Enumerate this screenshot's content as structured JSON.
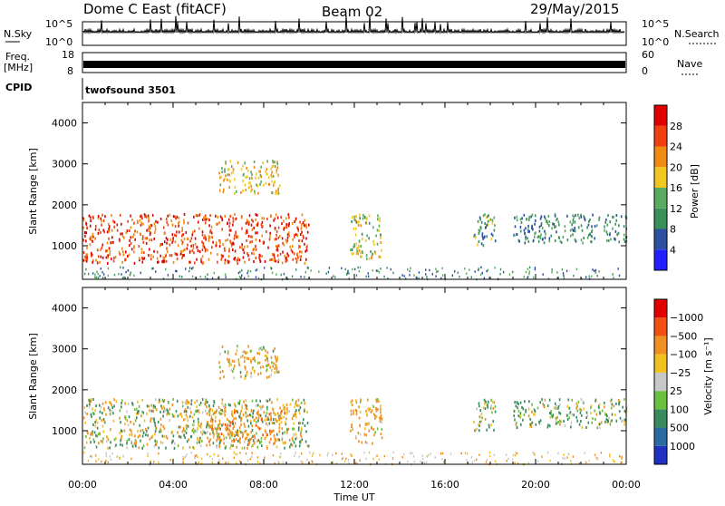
{
  "header": {
    "station": "Dome C East (fitACF)",
    "beam": "Beam 02",
    "date": "29/May/2015"
  },
  "top_panels": {
    "nsky_label": "N.Sky",
    "nsky_ticks": [
      "10^5",
      "10^0"
    ],
    "nsearch_label": "N.Search",
    "nsearch_ticks": [
      "10^5",
      "10^0"
    ],
    "freq_label": "Freq.",
    "freq_unit": "[MHz]",
    "freq_ticks": [
      "18",
      "8"
    ],
    "nave_label": "Nave",
    "nave_ticks": [
      "60",
      "0"
    ],
    "cpid_label": "CPID",
    "cpid_value": "twofsound 3501"
  },
  "chart_data": [
    {
      "type": "heatmap",
      "panel": "power",
      "ylabel": "Slant Range [km]",
      "ylim": [
        180,
        4500
      ],
      "yticks": [
        "4000",
        "3000",
        "2000",
        "1000"
      ],
      "colorbar_label": "Power [dB]",
      "colorbar_ticks": [
        "28",
        "24",
        "20",
        "16",
        "12",
        "8",
        "4"
      ],
      "colors": [
        "#2020ff",
        "#2c4fa0",
        "#3a8f5a",
        "#5aaa60",
        "#f0c820",
        "#f08a10",
        "#f04010",
        "#e00000"
      ],
      "grid": false,
      "echo_regions": [
        {
          "t_start": 0.0,
          "t_end": 10.0,
          "range_min": 600,
          "range_max": 1800,
          "typical_power_db": 26
        },
        {
          "t_start": 6.0,
          "t_end": 8.7,
          "range_min": 2300,
          "range_max": 3100,
          "typical_power_db": 18
        },
        {
          "t_start": 11.8,
          "t_end": 13.2,
          "range_min": 700,
          "range_max": 1800,
          "typical_power_db": 16
        },
        {
          "t_start": 17.2,
          "t_end": 18.2,
          "range_min": 1000,
          "range_max": 1800,
          "typical_power_db": 12
        },
        {
          "t_start": 19.0,
          "t_end": 24.0,
          "range_min": 1100,
          "range_max": 1800,
          "typical_power_db": 10
        }
      ]
    },
    {
      "type": "heatmap",
      "panel": "velocity",
      "ylabel": "Slant Range [km]",
      "xlabel": "Time UT",
      "ylim": [
        180,
        4500
      ],
      "yticks": [
        "4000",
        "3000",
        "2000",
        "1000"
      ],
      "xticks": [
        "00:00",
        "04:00",
        "08:00",
        "12:00",
        "16:00",
        "20:00",
        "00:00"
      ],
      "colorbar_label": "Velocity [m s⁻¹]",
      "colorbar_ticks": [
        "1000",
        "500",
        "100",
        "25",
        "−25",
        "−100",
        "−500",
        "−1000"
      ],
      "colors": [
        "#2030c0",
        "#2a6aa0",
        "#3a8a60",
        "#6cc040",
        "#c8c8c8",
        "#f0c020",
        "#f09020",
        "#f05010",
        "#e00000"
      ],
      "grid": false,
      "echo_regions": [
        {
          "t_start": 0.0,
          "t_end": 10.0,
          "range_min": 600,
          "range_max": 1800,
          "typical_velocity": 25
        },
        {
          "t_start": 5.5,
          "t_end": 9.0,
          "range_min": 700,
          "range_max": 1600,
          "typical_velocity": -300
        },
        {
          "t_start": 6.0,
          "t_end": 8.7,
          "range_min": 2300,
          "range_max": 3100,
          "typical_velocity": -100
        },
        {
          "t_start": 11.8,
          "t_end": 13.2,
          "range_min": 700,
          "range_max": 1800,
          "typical_velocity": -200
        },
        {
          "t_start": 17.2,
          "t_end": 18.2,
          "range_min": 1000,
          "range_max": 1800,
          "typical_velocity": 100
        },
        {
          "t_start": 19.0,
          "t_end": 24.0,
          "range_min": 1100,
          "range_max": 1800,
          "typical_velocity": 100
        }
      ]
    }
  ]
}
